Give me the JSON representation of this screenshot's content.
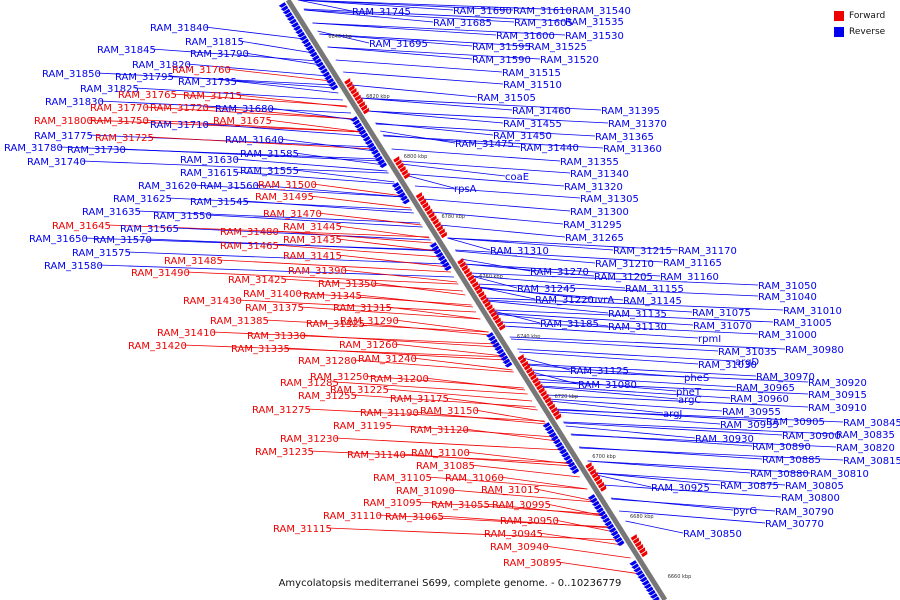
{
  "caption": "Amycolatopsis mediterranei S699, complete genome. - 0..10236779",
  "legend": [
    {
      "label": "Forward",
      "color": "#ee0000"
    },
    {
      "label": "Reverse",
      "color": "#0000ee"
    }
  ],
  "colors": {
    "forward": "#ee0000",
    "reverse": "#0000ee",
    "backbone": "#777777"
  },
  "ticks": [
    "6840 kbp",
    "6820 kbp",
    "6800 kbp",
    "6780 kbp",
    "6760 kbp",
    "6740 kbp",
    "6720 kbp",
    "6700 kbp",
    "6680 kbp",
    "6660 kbp"
  ],
  "labels": [
    {
      "t": "RAM_31840",
      "s": "r"
    },
    {
      "t": "RAM_31815",
      "s": "r"
    },
    {
      "t": "RAM_31845",
      "s": "r"
    },
    {
      "t": "RAM_31790",
      "s": "r"
    },
    {
      "t": "RAM_31820",
      "s": "r"
    },
    {
      "t": "RAM_31760",
      "s": "f"
    },
    {
      "t": "RAM_31850",
      "s": "r"
    },
    {
      "t": "RAM_31795",
      "s": "r"
    },
    {
      "t": "RAM_31735",
      "s": "r"
    },
    {
      "t": "RAM_31825",
      "s": "r"
    },
    {
      "t": "RAM_31765",
      "s": "f"
    },
    {
      "t": "RAM_31715",
      "s": "f"
    },
    {
      "t": "RAM_31830",
      "s": "r"
    },
    {
      "t": "RAM_31770",
      "s": "f"
    },
    {
      "t": "RAM_31720",
      "s": "f"
    },
    {
      "t": "RAM_31680",
      "s": "r"
    },
    {
      "t": "RAM_31800",
      "s": "f"
    },
    {
      "t": "RAM_31750",
      "s": "f"
    },
    {
      "t": "RAM_31710",
      "s": "r"
    },
    {
      "t": "RAM_31675",
      "s": "f"
    },
    {
      "t": "RAM_31775",
      "s": "r"
    },
    {
      "t": "RAM_31725",
      "s": "f"
    },
    {
      "t": "RAM_31640",
      "s": "r"
    },
    {
      "t": "RAM_31780",
      "s": "r"
    },
    {
      "t": "RAM_31730",
      "s": "r"
    },
    {
      "t": "RAM_31585",
      "s": "r"
    },
    {
      "t": "RAM_31740",
      "s": "r"
    },
    {
      "t": "RAM_31630",
      "s": "r"
    },
    {
      "t": "RAM_31615",
      "s": "r"
    },
    {
      "t": "RAM_31555",
      "s": "r"
    },
    {
      "t": "RAM_31620",
      "s": "r"
    },
    {
      "t": "RAM_31560",
      "s": "r"
    },
    {
      "t": "RAM_31500",
      "s": "f"
    },
    {
      "t": "RAM_31625",
      "s": "r"
    },
    {
      "t": "RAM_31545",
      "s": "r"
    },
    {
      "t": "RAM_31495",
      "s": "f"
    },
    {
      "t": "RAM_31635",
      "s": "r"
    },
    {
      "t": "RAM_31550",
      "s": "r"
    },
    {
      "t": "RAM_31470",
      "s": "f"
    },
    {
      "t": "RAM_31645",
      "s": "f"
    },
    {
      "t": "RAM_31565",
      "s": "r"
    },
    {
      "t": "RAM_31445",
      "s": "f"
    },
    {
      "t": "RAM_31480",
      "s": "f"
    },
    {
      "t": "RAM_31650",
      "s": "r"
    },
    {
      "t": "RAM_31570",
      "s": "r"
    },
    {
      "t": "RAM_31435",
      "s": "f"
    },
    {
      "t": "RAM_31465",
      "s": "f"
    },
    {
      "t": "RAM_31575",
      "s": "r"
    },
    {
      "t": "RAM_31415",
      "s": "f"
    },
    {
      "t": "RAM_31485",
      "s": "f"
    },
    {
      "t": "RAM_31580",
      "s": "r"
    },
    {
      "t": "RAM_31390",
      "s": "f"
    },
    {
      "t": "RAM_31490",
      "s": "f"
    },
    {
      "t": "RAM_31425",
      "s": "f"
    },
    {
      "t": "RAM_31350",
      "s": "f"
    },
    {
      "t": "RAM_31400",
      "s": "f"
    },
    {
      "t": "RAM_31345",
      "s": "f"
    },
    {
      "t": "RAM_31430",
      "s": "f"
    },
    {
      "t": "RAM_31375",
      "s": "f"
    },
    {
      "t": "RAM_31315",
      "s": "f"
    },
    {
      "t": "RAM_31385",
      "s": "f"
    },
    {
      "t": "RAM_31325",
      "s": "f"
    },
    {
      "t": "RAM_31290",
      "s": "f"
    },
    {
      "t": "RAM_31410",
      "s": "f"
    },
    {
      "t": "RAM_31330",
      "s": "f"
    },
    {
      "t": "RAM_31420",
      "s": "f"
    },
    {
      "t": "RAM_31335",
      "s": "f"
    },
    {
      "t": "RAM_31260",
      "s": "f"
    },
    {
      "t": "RAM_31280",
      "s": "f"
    },
    {
      "t": "RAM_31240",
      "s": "f"
    },
    {
      "t": "RAM_31250",
      "s": "f"
    },
    {
      "t": "RAM_31200",
      "s": "f"
    },
    {
      "t": "RAM_31285",
      "s": "f"
    },
    {
      "t": "RAM_31225",
      "s": "f"
    },
    {
      "t": "RAM_31255",
      "s": "f"
    },
    {
      "t": "RAM_31175",
      "s": "f"
    },
    {
      "t": "RAM_31275",
      "s": "f"
    },
    {
      "t": "RAM_31150",
      "s": "f"
    },
    {
      "t": "RAM_31190",
      "s": "f"
    },
    {
      "t": "RAM_31195",
      "s": "f"
    },
    {
      "t": "RAM_31120",
      "s": "f"
    },
    {
      "t": "RAM_31230",
      "s": "f"
    },
    {
      "t": "RAM_31235",
      "s": "f"
    },
    {
      "t": "RAM_31100",
      "s": "f"
    },
    {
      "t": "RAM_31140",
      "s": "f"
    },
    {
      "t": "RAM_31085",
      "s": "f"
    },
    {
      "t": "RAM_31060",
      "s": "f"
    },
    {
      "t": "RAM_31105",
      "s": "f"
    },
    {
      "t": "RAM_31015",
      "s": "f"
    },
    {
      "t": "RAM_31090",
      "s": "f"
    },
    {
      "t": "RAM_30995",
      "s": "f"
    },
    {
      "t": "RAM_31095",
      "s": "f"
    },
    {
      "t": "RAM_31055",
      "s": "f"
    },
    {
      "t": "RAM_31110",
      "s": "f"
    },
    {
      "t": "RAM_31065",
      "s": "f"
    },
    {
      "t": "RAM_30950",
      "s": "f"
    },
    {
      "t": "RAM_31115",
      "s": "f"
    },
    {
      "t": "RAM_30945",
      "s": "f"
    },
    {
      "t": "RAM_30940",
      "s": "f"
    },
    {
      "t": "RAM_30895",
      "s": "f"
    },
    {
      "t": "RAM_31745",
      "s": "r"
    },
    {
      "t": "RAM_31690",
      "s": "r"
    },
    {
      "t": "RAM_31610",
      "s": "r"
    },
    {
      "t": "RAM_31540",
      "s": "r"
    },
    {
      "t": "RAM_31685",
      "s": "r"
    },
    {
      "t": "RAM_31605",
      "s": "r"
    },
    {
      "t": "RAM_31535",
      "s": "r"
    },
    {
      "t": "RAM_31600",
      "s": "r"
    },
    {
      "t": "RAM_31530",
      "s": "r"
    },
    {
      "t": "RAM_31695",
      "s": "r"
    },
    {
      "t": "RAM_31595",
      "s": "r"
    },
    {
      "t": "RAM_31525",
      "s": "r"
    },
    {
      "t": "RAM_31590",
      "s": "r"
    },
    {
      "t": "RAM_31520",
      "s": "r"
    },
    {
      "t": "RAM_31515",
      "s": "r"
    },
    {
      "t": "RAM_31510",
      "s": "r"
    },
    {
      "t": "RAM_31505",
      "s": "r"
    },
    {
      "t": "RAM_31460",
      "s": "r"
    },
    {
      "t": "RAM_31395",
      "s": "r"
    },
    {
      "t": "RAM_31455",
      "s": "r"
    },
    {
      "t": "RAM_31370",
      "s": "r"
    },
    {
      "t": "RAM_31450",
      "s": "r"
    },
    {
      "t": "RAM_31365",
      "s": "r"
    },
    {
      "t": "RAM_31475",
      "s": "r"
    },
    {
      "t": "RAM_31440",
      "s": "r"
    },
    {
      "t": "RAM_31360",
      "s": "r"
    },
    {
      "t": "RAM_31355",
      "s": "r"
    },
    {
      "t": "rpsA",
      "s": "r"
    },
    {
      "t": "coaE",
      "s": "r"
    },
    {
      "t": "RAM_31340",
      "s": "r"
    },
    {
      "t": "RAM_31320",
      "s": "r"
    },
    {
      "t": "RAM_31305",
      "s": "r"
    },
    {
      "t": "RAM_31300",
      "s": "r"
    },
    {
      "t": "RAM_31295",
      "s": "r"
    },
    {
      "t": "RAM_31265",
      "s": "r"
    },
    {
      "t": "RAM_31310",
      "s": "r"
    },
    {
      "t": "RAM_31215",
      "s": "r"
    },
    {
      "t": "RAM_31170",
      "s": "r"
    },
    {
      "t": "RAM_31210",
      "s": "r"
    },
    {
      "t": "RAM_31165",
      "s": "r"
    },
    {
      "t": "RAM_31270",
      "s": "r"
    },
    {
      "t": "RAM_31205",
      "s": "r"
    },
    {
      "t": "RAM_31160",
      "s": "r"
    },
    {
      "t": "RAM_31245",
      "s": "r"
    },
    {
      "t": "RAM_31155",
      "s": "r"
    },
    {
      "t": "uvrA",
      "s": "r"
    },
    {
      "t": "RAM_31145",
      "s": "r"
    },
    {
      "t": "RAM_31220",
      "s": "r"
    },
    {
      "t": "RAM_31135",
      "s": "r"
    },
    {
      "t": "RAM_31185",
      "s": "r"
    },
    {
      "t": "RAM_31130",
      "s": "r"
    },
    {
      "t": "RAM_31050",
      "s": "r"
    },
    {
      "t": "RAM_31040",
      "s": "r"
    },
    {
      "t": "RAM_31075",
      "s": "r"
    },
    {
      "t": "RAM_31010",
      "s": "r"
    },
    {
      "t": "RAM_31070",
      "s": "r"
    },
    {
      "t": "RAM_31005",
      "s": "r"
    },
    {
      "t": "rpmI",
      "s": "r"
    },
    {
      "t": "RAM_31000",
      "s": "r"
    },
    {
      "t": "RAM_31035",
      "s": "r"
    },
    {
      "t": "RAM_30980",
      "s": "r"
    },
    {
      "t": "RAM_31030",
      "s": "r"
    },
    {
      "t": "argD",
      "s": "r"
    },
    {
      "t": "RAM_31125",
      "s": "r"
    },
    {
      "t": "pheS",
      "s": "r"
    },
    {
      "t": "RAM_30970",
      "s": "r"
    },
    {
      "t": "RAM_31080",
      "s": "r"
    },
    {
      "t": "RAM_30965",
      "s": "r"
    },
    {
      "t": "RAM_30920",
      "s": "r"
    },
    {
      "t": "pheT",
      "s": "r"
    },
    {
      "t": "argC",
      "s": "r"
    },
    {
      "t": "RAM_30960",
      "s": "r"
    },
    {
      "t": "RAM_30915",
      "s": "r"
    },
    {
      "t": "argJ",
      "s": "r"
    },
    {
      "t": "RAM_30955",
      "s": "r"
    },
    {
      "t": "RAM_30910",
      "s": "r"
    },
    {
      "t": "RAM_30935",
      "s": "r"
    },
    {
      "t": "RAM_30905",
      "s": "r"
    },
    {
      "t": "RAM_30845",
      "s": "r"
    },
    {
      "t": "RAM_30930",
      "s": "r"
    },
    {
      "t": "RAM_30900",
      "s": "r"
    },
    {
      "t": "RAM_30835",
      "s": "r"
    },
    {
      "t": "RAM_30890",
      "s": "r"
    },
    {
      "t": "RAM_30820",
      "s": "r"
    },
    {
      "t": "RAM_30885",
      "s": "r"
    },
    {
      "t": "RAM_30815",
      "s": "r"
    },
    {
      "t": "RAM_30880",
      "s": "r"
    },
    {
      "t": "RAM_30810",
      "s": "r"
    },
    {
      "t": "RAM_30925",
      "s": "r"
    },
    {
      "t": "RAM_30875",
      "s": "r"
    },
    {
      "t": "RAM_30805",
      "s": "r"
    },
    {
      "t": "RAM_30800",
      "s": "r"
    },
    {
      "t": "pyrG",
      "s": "r"
    },
    {
      "t": "RAM_30790",
      "s": "r"
    },
    {
      "t": "RAM_30850",
      "s": "r"
    },
    {
      "t": "RAM_30770",
      "s": "r"
    }
  ]
}
